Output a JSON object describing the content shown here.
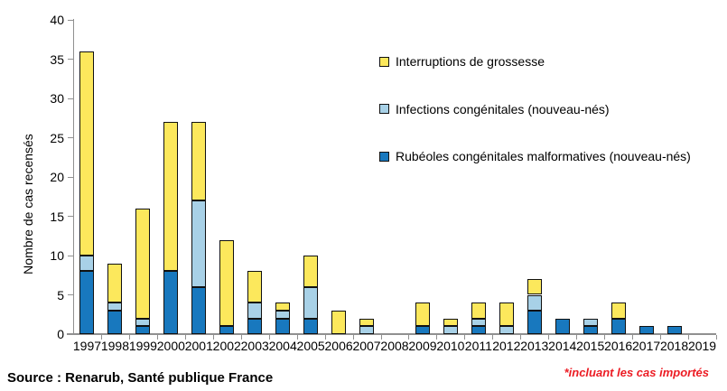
{
  "chart_data": {
    "type": "bar",
    "stacked": true,
    "title": "",
    "xlabel": "",
    "ylabel": "Nombre de cas recensés",
    "ylim": [
      0,
      40
    ],
    "ytick_step": 5,
    "grid": false,
    "legend_position": "upper-right-inside",
    "categories": [
      "1997",
      "1998",
      "1999",
      "2000",
      "2001",
      "2002",
      "2003",
      "2004",
      "2005",
      "2006",
      "2007",
      "2008",
      "2009",
      "2010",
      "2011",
      "2012",
      "2013",
      "2014",
      "2015",
      "2016",
      "2017",
      "2018",
      "2019"
    ],
    "series": [
      {
        "name": "Rubéoles congénitales malformatives (nouveau-nés)",
        "color": "#1878BE",
        "values": [
          8,
          3,
          1,
          8,
          6,
          1,
          2,
          2,
          2,
          0,
          0,
          0,
          1,
          0,
          1,
          0,
          3,
          2,
          1,
          2,
          1,
          1,
          0
        ]
      },
      {
        "name": "Infections congénitales (nouveau-nés)",
        "color": "#A8D1E7",
        "values": [
          2,
          1,
          1,
          0,
          11,
          0,
          2,
          1,
          4,
          0,
          1,
          0,
          0,
          1,
          1,
          1,
          2,
          0,
          1,
          0,
          0,
          0,
          0
        ]
      },
      {
        "name": "Interruptions de grossesse",
        "color": "#FCE85C",
        "values": [
          26,
          5,
          14,
          19,
          10,
          11,
          4,
          1,
          4,
          3,
          1,
          0,
          3,
          1,
          2,
          3,
          2,
          0,
          0,
          2,
          0,
          0,
          0
        ]
      }
    ],
    "legend": [
      {
        "label": "Interruptions de grossesse",
        "color": "#FCE85C"
      },
      {
        "label": "Infections congénitales (nouveau-nés)",
        "color": "#A8D1E7"
      },
      {
        "label": "Rubéoles congénitales malformatives (nouveau-nés)",
        "color": "#1878BE"
      }
    ]
  },
  "footer": {
    "source": "Source : Renarub, Santé publique France",
    "note": "*incluant les cas importés",
    "note_color": "#EC1C24"
  },
  "style": {
    "axis_color": "#909090",
    "bar_border": "#111111"
  }
}
